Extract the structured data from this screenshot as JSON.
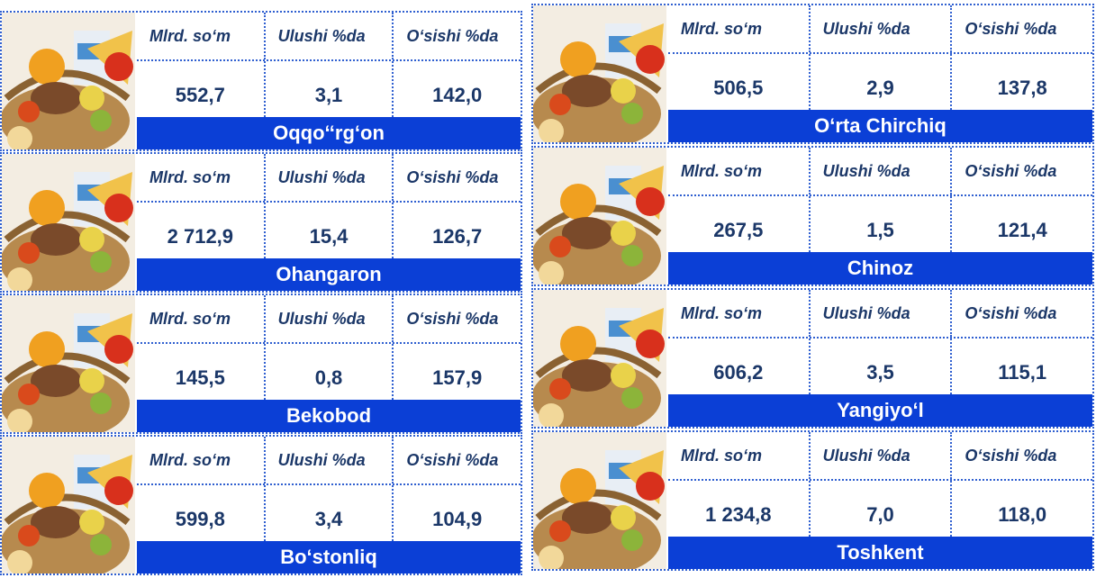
{
  "headers": [
    "Mlrd. so‘m",
    "Ulushi %da",
    "O‘sishi %da"
  ],
  "cards": [
    {
      "name": "Oqqo‘‘rg‘on",
      "values": [
        "552,7",
        "3,1",
        "142,0"
      ]
    },
    {
      "name": "Ohangaron",
      "values": [
        "2 712,9",
        "15,4",
        "126,7"
      ]
    },
    {
      "name": "Bekobod",
      "values": [
        "145,5",
        "0,8",
        "157,9"
      ]
    },
    {
      "name": "Bo‘stonliq",
      "values": [
        "599,8",
        "3,4",
        "104,9"
      ]
    },
    {
      "name": "O‘rta Chirchiq",
      "values": [
        "506,5",
        "2,9",
        "137,8"
      ]
    },
    {
      "name": "Chinoz",
      "values": [
        "267,5",
        "1,5",
        "121,4"
      ]
    },
    {
      "name": "Yangiyo‘l",
      "values": [
        "606,2",
        "3,5",
        "115,1"
      ]
    },
    {
      "name": "Toshkent",
      "values": [
        "1 234,8",
        "7,0",
        "118,0"
      ]
    }
  ]
}
